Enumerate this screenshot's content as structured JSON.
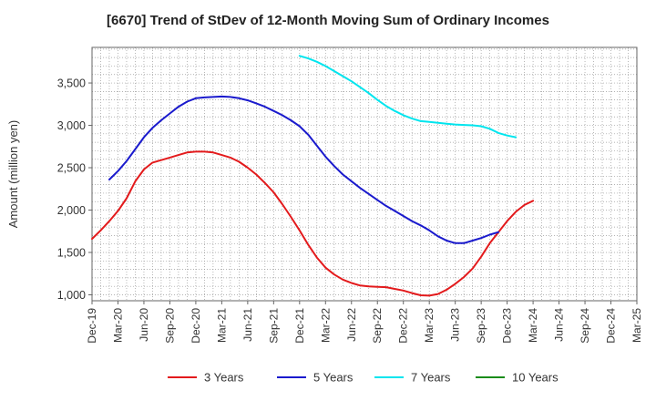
{
  "chart_data": {
    "type": "line",
    "title": "[6670]  Trend of StDev of 12-Month Moving Sum of Ordinary Incomes",
    "xlabel": "",
    "ylabel": "Amount (million yen)",
    "x_tick_labels": [
      "Dec-19",
      "Mar-20",
      "Jun-20",
      "Sep-20",
      "Dec-20",
      "Mar-21",
      "Jun-21",
      "Sep-21",
      "Dec-21",
      "Mar-22",
      "Jun-22",
      "Sep-22",
      "Dec-22",
      "Mar-23",
      "Jun-23",
      "Sep-23",
      "Dec-23",
      "Mar-24",
      "Jun-24",
      "Sep-24",
      "Dec-24",
      "Mar-25"
    ],
    "y_ticks": [
      1000,
      1500,
      2000,
      2500,
      3000,
      3500
    ],
    "y_tick_labels": [
      "1,000",
      "1,500",
      "2,000",
      "2,500",
      "3,000",
      "3,500"
    ],
    "ylim": [
      930,
      3920
    ],
    "grid": true,
    "legend_position": "bottom",
    "series": [
      {
        "name": "3 Years",
        "color": "#e31a1c",
        "points": [
          [
            "Dec-19",
            1660
          ],
          [
            "Jan-20",
            1760
          ],
          [
            "Feb-20",
            1870
          ],
          [
            "Mar-20",
            1990
          ],
          [
            "Apr-20",
            2140
          ],
          [
            "May-20",
            2340
          ],
          [
            "Jun-20",
            2480
          ],
          [
            "Jul-20",
            2560
          ],
          [
            "Aug-20",
            2590
          ],
          [
            "Sep-20",
            2620
          ],
          [
            "Oct-20",
            2650
          ],
          [
            "Nov-20",
            2680
          ],
          [
            "Dec-20",
            2690
          ],
          [
            "Jan-21",
            2690
          ],
          [
            "Feb-21",
            2680
          ],
          [
            "Mar-21",
            2650
          ],
          [
            "Apr-21",
            2620
          ],
          [
            "May-21",
            2570
          ],
          [
            "Jun-21",
            2500
          ],
          [
            "Jul-21",
            2420
          ],
          [
            "Aug-21",
            2320
          ],
          [
            "Sep-21",
            2210
          ],
          [
            "Oct-21",
            2070
          ],
          [
            "Nov-21",
            1920
          ],
          [
            "Dec-21",
            1760
          ],
          [
            "Jan-22",
            1590
          ],
          [
            "Feb-22",
            1440
          ],
          [
            "Mar-22",
            1320
          ],
          [
            "Apr-22",
            1240
          ],
          [
            "May-22",
            1180
          ],
          [
            "Jun-22",
            1140
          ],
          [
            "Jul-22",
            1110
          ],
          [
            "Aug-22",
            1100
          ],
          [
            "Sep-22",
            1095
          ],
          [
            "Oct-22",
            1090
          ],
          [
            "Nov-22",
            1070
          ],
          [
            "Dec-22",
            1050
          ],
          [
            "Jan-23",
            1020
          ],
          [
            "Feb-23",
            995
          ],
          [
            "Mar-23",
            990
          ],
          [
            "Apr-23",
            1010
          ],
          [
            "May-23",
            1060
          ],
          [
            "Jun-23",
            1130
          ],
          [
            "Jul-23",
            1210
          ],
          [
            "Aug-23",
            1310
          ],
          [
            "Sep-23",
            1450
          ],
          [
            "Oct-23",
            1610
          ],
          [
            "Nov-23",
            1740
          ],
          [
            "Dec-23",
            1870
          ],
          [
            "Jan-24",
            1980
          ],
          [
            "Feb-24",
            2060
          ],
          [
            "Mar-24",
            2110
          ]
        ]
      },
      {
        "name": "5 Years",
        "color": "#1a1acd",
        "points": [
          [
            "Feb-20",
            2360
          ],
          [
            "Mar-20",
            2460
          ],
          [
            "Apr-20",
            2580
          ],
          [
            "May-20",
            2720
          ],
          [
            "Jun-20",
            2860
          ],
          [
            "Jul-20",
            2970
          ],
          [
            "Aug-20",
            3060
          ],
          [
            "Sep-20",
            3140
          ],
          [
            "Oct-20",
            3220
          ],
          [
            "Nov-20",
            3280
          ],
          [
            "Dec-20",
            3320
          ],
          [
            "Jan-21",
            3330
          ],
          [
            "Feb-21",
            3335
          ],
          [
            "Mar-21",
            3340
          ],
          [
            "Apr-21",
            3335
          ],
          [
            "May-21",
            3320
          ],
          [
            "Jun-21",
            3295
          ],
          [
            "Jul-21",
            3260
          ],
          [
            "Aug-21",
            3220
          ],
          [
            "Sep-21",
            3170
          ],
          [
            "Oct-21",
            3120
          ],
          [
            "Nov-21",
            3060
          ],
          [
            "Dec-21",
            2990
          ],
          [
            "Jan-22",
            2890
          ],
          [
            "Feb-22",
            2760
          ],
          [
            "Mar-22",
            2630
          ],
          [
            "Apr-22",
            2520
          ],
          [
            "May-22",
            2420
          ],
          [
            "Jun-22",
            2340
          ],
          [
            "Jul-22",
            2260
          ],
          [
            "Aug-22",
            2190
          ],
          [
            "Sep-22",
            2120
          ],
          [
            "Oct-22",
            2050
          ],
          [
            "Nov-22",
            1990
          ],
          [
            "Dec-22",
            1930
          ],
          [
            "Jan-23",
            1870
          ],
          [
            "Feb-23",
            1820
          ],
          [
            "Mar-23",
            1760
          ],
          [
            "Apr-23",
            1690
          ],
          [
            "May-23",
            1640
          ],
          [
            "Jun-23",
            1610
          ],
          [
            "Jul-23",
            1610
          ],
          [
            "Aug-23",
            1640
          ],
          [
            "Sep-23",
            1670
          ],
          [
            "Oct-23",
            1710
          ],
          [
            "Nov-23",
            1740
          ]
        ]
      },
      {
        "name": "7 Years",
        "color": "#00e5ee",
        "points": [
          [
            "Dec-21",
            3820
          ],
          [
            "Jan-22",
            3790
          ],
          [
            "Feb-22",
            3750
          ],
          [
            "Mar-22",
            3700
          ],
          [
            "Apr-22",
            3640
          ],
          [
            "May-22",
            3580
          ],
          [
            "Jun-22",
            3520
          ],
          [
            "Jul-22",
            3450
          ],
          [
            "Aug-22",
            3380
          ],
          [
            "Sep-22",
            3300
          ],
          [
            "Oct-22",
            3230
          ],
          [
            "Nov-22",
            3170
          ],
          [
            "Dec-22",
            3120
          ],
          [
            "Jan-23",
            3080
          ],
          [
            "Feb-23",
            3050
          ],
          [
            "Mar-23",
            3040
          ],
          [
            "Apr-23",
            3030
          ],
          [
            "May-23",
            3020
          ],
          [
            "Jun-23",
            3010
          ],
          [
            "Jul-23",
            3005
          ],
          [
            "Aug-23",
            3000
          ],
          [
            "Sep-23",
            2990
          ],
          [
            "Oct-23",
            2960
          ],
          [
            "Nov-23",
            2910
          ],
          [
            "Dec-23",
            2880
          ],
          [
            "Jan-24",
            2860
          ]
        ]
      },
      {
        "name": "10 Years",
        "color": "#1a8c1a",
        "points": []
      }
    ]
  }
}
